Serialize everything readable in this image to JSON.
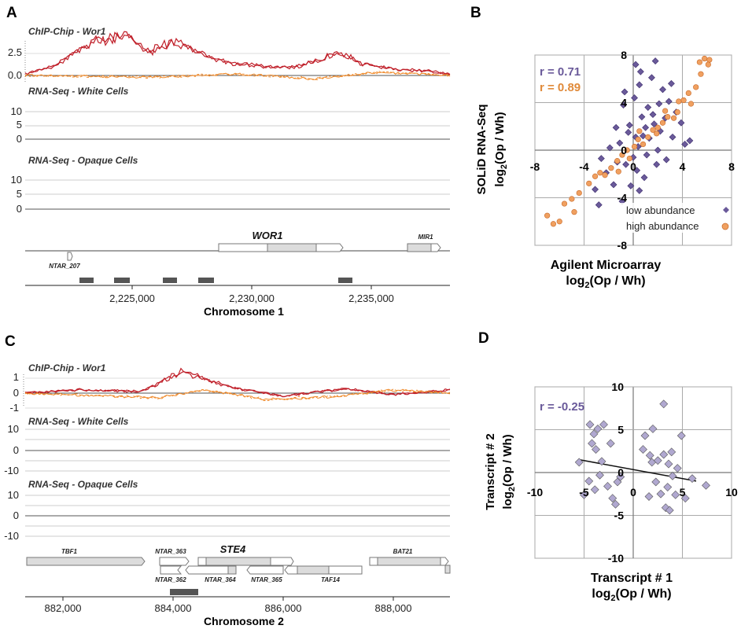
{
  "panels": {
    "a": {
      "label": "A",
      "tracks": {
        "chip": "ChIP-Chip - Wor1",
        "white": "RNA-Seq - White Cells",
        "opaque": "RNA-Seq - Opaque Cells"
      },
      "chip_ticks": [
        "2.5",
        "0.0"
      ],
      "rna_ticks": [
        "10",
        "5",
        "0"
      ],
      "genes": {
        "wor1": "WOR1",
        "mir1": "MIR1",
        "ntar": "NTAR_207"
      },
      "xticks": [
        "2,225,000",
        "2,230,000",
        "2,235,000"
      ],
      "xlabel": "Chromosome 1"
    },
    "b": {
      "label": "B",
      "r_low": "r = 0.71",
      "r_high": "r = 0.89",
      "legend_low": "low abundance",
      "legend_high": "high abundance",
      "ylabel1": "SOLiD RNA-Seq",
      "ylabel2_pre": "log",
      "ylabel2_sub": "2",
      "ylabel2_post": "(Op / Wh)",
      "xlabel1": "Agilent Microarray",
      "xlabel2_pre": "log",
      "xlabel2_sub": "2",
      "xlabel2_post": "(Op / Wh)",
      "xticks": [
        "-8",
        "-4",
        "0",
        "4",
        "8"
      ],
      "yticks": [
        "8",
        "4",
        "0",
        "-4",
        "-8"
      ]
    },
    "c": {
      "label": "C",
      "tracks": {
        "chip": "ChIP-Chip - Wor1",
        "white": "RNA-Seq - White Cells",
        "opaque": "RNA-Seq - Opaque Cells"
      },
      "chip_ticks": [
        "1",
        "0",
        "-1"
      ],
      "rna_ticks": [
        "10",
        "0",
        "-10"
      ],
      "genes": {
        "tbf1": "TBF1",
        "ntar363": "NTAR_363",
        "ste4": "STE4",
        "bat21": "BAT21",
        "ntar362": "NTAR_362",
        "ntar364": "NTAR_364",
        "ntar365": "NTAR_365",
        "taf14": "TAF14"
      },
      "xticks": [
        "882,000",
        "884,000",
        "886,000",
        "888,000"
      ],
      "xlabel": "Chromosome 2"
    },
    "d": {
      "label": "D",
      "r": "r = -0.25",
      "ylabel1": "Transcript # 2",
      "ylabel2_pre": "log",
      "ylabel2_sub": "2",
      "ylabel2_post": "(Op / Wh)",
      "xlabel1": "Transcript # 1",
      "xlabel2_pre": "log",
      "xlabel2_sub": "2",
      "xlabel2_post": "(Op / Wh)",
      "xticks": [
        "-10",
        "-5",
        "0",
        "5",
        "10"
      ],
      "yticks": [
        "10",
        "5",
        "0",
        "-5",
        "-10"
      ]
    }
  },
  "colors": {
    "chip_red": "#c0202a",
    "chip_orange": "#f08a2a",
    "white_green": "#1a8a1a",
    "opaque_green": "#1a8a1a",
    "neg_blue": "#0a1a80",
    "low_purple": "#6a5a9a",
    "high_orange": "#f0a060",
    "d_marker": "#b0a8d0",
    "r_purple": "#6a5a9a",
    "r_orange": "#e08a3a",
    "gene_fill": "#dcdcdc"
  },
  "chart_data": [
    {
      "panel": "B",
      "type": "scatter",
      "xlim": [
        -8,
        8
      ],
      "ylim": [
        -8,
        8
      ],
      "grid": true,
      "legend": "bottom-right",
      "series": [
        {
          "name": "low abundance",
          "marker": "diamond",
          "color": "#6a5a9a",
          "correlation": 0.71,
          "points": [
            [
              -0.4,
              1.5
            ],
            [
              1,
              1.9
            ],
            [
              -1.3,
              -1
            ],
            [
              0.5,
              5.5
            ],
            [
              2,
              0
            ],
            [
              -0.2,
              -3
            ],
            [
              1.6,
              3
            ],
            [
              3.2,
              1.1
            ],
            [
              -2.6,
              -0.7
            ],
            [
              0.9,
              -2.3
            ],
            [
              0.2,
              7.2
            ],
            [
              1.8,
              7.5
            ],
            [
              -0.8,
              3.8
            ],
            [
              2.6,
              2.7
            ],
            [
              0.4,
              0.3
            ],
            [
              -1.6,
              -2.9
            ],
            [
              3.9,
              2.3
            ],
            [
              1.3,
              1
            ],
            [
              -0.6,
              -1.2
            ],
            [
              0.1,
              4.4
            ],
            [
              2.4,
              5.1
            ],
            [
              -3.1,
              -3.3
            ],
            [
              1.1,
              -0.4
            ],
            [
              4.2,
              0.5
            ],
            [
              0.7,
              2.8
            ],
            [
              -1.1,
              0.6
            ],
            [
              2.9,
              4.1
            ],
            [
              0.3,
              -1.7
            ],
            [
              1.5,
              6.1
            ],
            [
              -2.2,
              -1.9
            ],
            [
              0.8,
              1.2
            ],
            [
              3.5,
              3.2
            ],
            [
              -0.3,
              2.1
            ],
            [
              1.9,
              -1.2
            ],
            [
              -0.9,
              -4.3
            ],
            [
              2.2,
              1.6
            ],
            [
              0.6,
              6.6
            ],
            [
              -1.9,
              0.2
            ],
            [
              1.2,
              3.6
            ],
            [
              4.6,
              0.8
            ],
            [
              0.0,
              -0.6
            ],
            [
              2.7,
              -0.8
            ],
            [
              -1.4,
              1.9
            ],
            [
              3.1,
              5.6
            ],
            [
              0.5,
              -3.4
            ],
            [
              1.7,
              2.2
            ],
            [
              -2.8,
              -4.6
            ],
            [
              0.2,
              1.1
            ],
            [
              2.1,
              3.9
            ],
            [
              -0.7,
              4.9
            ]
          ]
        },
        {
          "name": "high abundance",
          "marker": "circle",
          "color": "#f0a060",
          "correlation": 0.89,
          "points": [
            [
              -7,
              -5.5
            ],
            [
              -6,
              -6
            ],
            [
              -5,
              -4.1
            ],
            [
              -3.6,
              -2.8
            ],
            [
              -2.3,
              -2.1
            ],
            [
              -1.3,
              -0.9
            ],
            [
              -0.5,
              0
            ],
            [
              0.4,
              0.9
            ],
            [
              1.2,
              1.1
            ],
            [
              2,
              1.9
            ],
            [
              2.8,
              2.8
            ],
            [
              3.6,
              3.2
            ],
            [
              4.5,
              4.8
            ],
            [
              5.5,
              6.4
            ],
            [
              6.2,
              7.6
            ],
            [
              -6.5,
              -6.2
            ],
            [
              -4.4,
              -3.6
            ],
            [
              -3.1,
              -2.2
            ],
            [
              -1.8,
              -1.5
            ],
            [
              -0.9,
              -0.4
            ],
            [
              0.1,
              0.3
            ],
            [
              0.8,
              0.5
            ],
            [
              1.6,
              1.7
            ],
            [
              2.4,
              2.3
            ],
            [
              3.3,
              2.7
            ],
            [
              4.1,
              4.2
            ],
            [
              5.1,
              5.3
            ],
            [
              6.1,
              7.2
            ],
            [
              -5.6,
              -4.5
            ],
            [
              -2.7,
              -1.9
            ],
            [
              -1.2,
              -1.8
            ],
            [
              0.5,
              1.6
            ],
            [
              1.9,
              1.4
            ],
            [
              3.7,
              4.1
            ],
            [
              5.8,
              7.7
            ],
            [
              -4.8,
              -5.2
            ],
            [
              -0.3,
              -0.7
            ],
            [
              2.6,
              3.3
            ],
            [
              4.7,
              3.9
            ],
            [
              5.4,
              7.4
            ]
          ]
        }
      ]
    },
    {
      "panel": "D",
      "type": "scatter",
      "xlim": [
        -10,
        10
      ],
      "ylim": [
        -10,
        10
      ],
      "grid": true,
      "correlation": -0.25,
      "trendline": [
        [
          -5.5,
          1.5
        ],
        [
          6.4,
          -1
        ]
      ],
      "series": [
        {
          "marker": "diamond",
          "color": "#b0a8d0",
          "points": [
            [
              -5.5,
              1.2
            ],
            [
              -5,
              -2.6
            ],
            [
              -4.5,
              -1
            ],
            [
              -4.4,
              5.6
            ],
            [
              -4.2,
              3.4
            ],
            [
              -4,
              4.5
            ],
            [
              -3.9,
              -2
            ],
            [
              -3.8,
              2.7
            ],
            [
              -3.6,
              5.1
            ],
            [
              -3.4,
              -0.3
            ],
            [
              -3.2,
              1.3
            ],
            [
              -3,
              5.6
            ],
            [
              -2.6,
              -1.6
            ],
            [
              -2.3,
              3.4
            ],
            [
              -2.1,
              -3
            ],
            [
              -1.8,
              -3.7
            ],
            [
              -1.6,
              -1.1
            ],
            [
              -1.3,
              -0.5
            ],
            [
              1,
              2.7
            ],
            [
              1.2,
              4.3
            ],
            [
              1.6,
              -2.8
            ],
            [
              1.7,
              2
            ],
            [
              1.9,
              1.2
            ],
            [
              2,
              5.1
            ],
            [
              2.3,
              -1.1
            ],
            [
              2.5,
              1.4
            ],
            [
              2.8,
              -2.5
            ],
            [
              3.1,
              2.1
            ],
            [
              3.3,
              -4.1
            ],
            [
              3.5,
              -1.7
            ],
            [
              3.7,
              -4.4
            ],
            [
              4,
              -0.4
            ],
            [
              4.3,
              -2.6
            ],
            [
              4.5,
              0.5
            ],
            [
              4.9,
              4.3
            ],
            [
              6,
              -0.7
            ],
            [
              7.4,
              -1.5
            ],
            [
              3.9,
              2.4
            ],
            [
              5.3,
              -3
            ],
            [
              3.1,
              8
            ],
            [
              3.6,
              1
            ]
          ]
        }
      ]
    }
  ]
}
